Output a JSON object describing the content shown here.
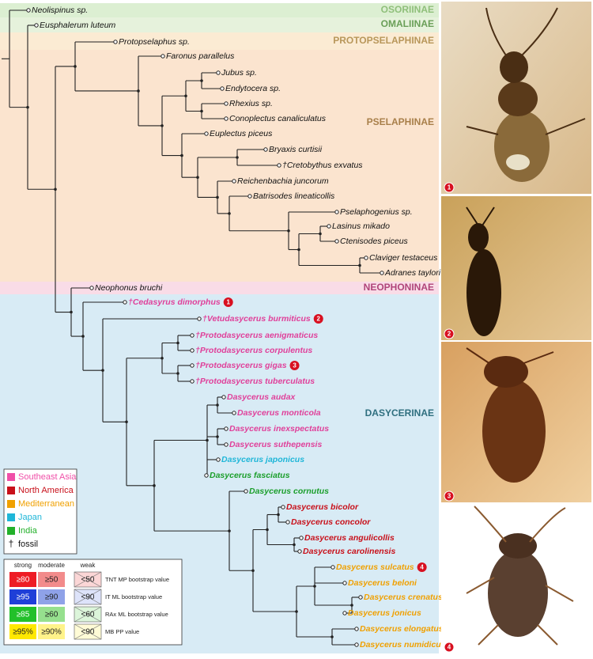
{
  "subfamilies": [
    {
      "name": "OSORIINAE",
      "color": "#8fbf7a"
    },
    {
      "name": "OMALIINAE",
      "color": "#6a9f58"
    },
    {
      "name": "PROTOPSELAPHINAE",
      "color": "#b8975a"
    },
    {
      "name": "PSELAPHINAE",
      "color": "#a87f4a"
    },
    {
      "name": "NEOPHONINAE",
      "color": "#b0457a"
    },
    {
      "name": "DASYCERINAE",
      "color": "#2f6f7f"
    }
  ],
  "taxa": [
    {
      "name": "Neolispinus sp.",
      "color": "#111111"
    },
    {
      "name": "Eusphalerum luteum",
      "color": "#111111"
    },
    {
      "name": "Protopselaphus sp.",
      "color": "#111111"
    },
    {
      "name": "Faronus parallelus",
      "color": "#111111"
    },
    {
      "name": "Jubus sp.",
      "color": "#111111"
    },
    {
      "name": "Endytocera sp.",
      "color": "#111111"
    },
    {
      "name": "Rhexius sp.",
      "color": "#111111"
    },
    {
      "name": "Conoplectus canaliculatus",
      "color": "#111111"
    },
    {
      "name": "Euplectus piceus",
      "color": "#111111"
    },
    {
      "name": "Bryaxis curtisii",
      "color": "#111111"
    },
    {
      "name": "†Cretobythus exvatus",
      "color": "#111111"
    },
    {
      "name": "Reichenbachia juncorum",
      "color": "#111111"
    },
    {
      "name": "Batrisodes lineaticollis",
      "color": "#111111"
    },
    {
      "name": "Pselaphogenius sp.",
      "color": "#111111"
    },
    {
      "name": "Lasinus mikado",
      "color": "#111111"
    },
    {
      "name": "Ctenisodes piceus",
      "color": "#111111"
    },
    {
      "name": "Claviger testaceus",
      "color": "#111111"
    },
    {
      "name": "Adranes taylori",
      "color": "#111111"
    },
    {
      "name": "Neophonus bruchi",
      "color": "#111111"
    },
    {
      "name": "†Cedasyrus dimorphus",
      "color": "#e0409a",
      "badge": "1"
    },
    {
      "name": "†Vetudasycerus burmiticus",
      "color": "#e0409a",
      "badge": "2"
    },
    {
      "name": "†Protodasycerus aenigmaticus",
      "color": "#e0409a"
    },
    {
      "name": "†Protodasycerus corpulentus",
      "color": "#e0409a"
    },
    {
      "name": "†Protodasycerus gigas",
      "color": "#e0409a",
      "badge": "3"
    },
    {
      "name": "†Protodasycerus tuberculatus",
      "color": "#e0409a"
    },
    {
      "name": "Dasycerus audax",
      "color": "#e0409a"
    },
    {
      "name": "Dasycerus monticola",
      "color": "#e0409a"
    },
    {
      "name": "Dasycerus inexspectatus",
      "color": "#e0409a"
    },
    {
      "name": "Dasycerus suthepensis",
      "color": "#e0409a"
    },
    {
      "name": "Dasycerus japonicus",
      "color": "#1fb6d8"
    },
    {
      "name": "Dasycerus fasciatus",
      "color": "#1a9e2a"
    },
    {
      "name": "Dasycerus cornutus",
      "color": "#1a9e2a"
    },
    {
      "name": "Dasycerus bicolor",
      "color": "#c8101a"
    },
    {
      "name": "Dasycerus concolor",
      "color": "#c8101a"
    },
    {
      "name": "Dasycerus angulicollis",
      "color": "#c8101a"
    },
    {
      "name": "Dasycerus carolinensis",
      "color": "#c8101a"
    },
    {
      "name": "Dasycerus sulcatus",
      "color": "#f0a000",
      "badge": "4"
    },
    {
      "name": "Dasycerus beloni",
      "color": "#f0a000"
    },
    {
      "name": "Dasycerus crenatus",
      "color": "#f0a000"
    },
    {
      "name": "Dasycerus jonicus",
      "color": "#f0a000"
    },
    {
      "name": "Dasycerus elongatus",
      "color": "#f0a000"
    },
    {
      "name": "Dasycerus numidicus",
      "color": "#f0a000"
    }
  ],
  "region_legend": [
    {
      "label": "Southeast Asia",
      "color": "#f04fa8"
    },
    {
      "label": "North America",
      "color": "#c8101a"
    },
    {
      "label": "Mediterranean",
      "color": "#f0a000"
    },
    {
      "label": "Japan",
      "color": "#1fb6d8"
    },
    {
      "label": "India",
      "color": "#22b02a"
    },
    {
      "label": "fossil",
      "symbol": "†"
    }
  ],
  "support_legend": {
    "headers": [
      "strong",
      "moderate",
      "weak"
    ],
    "rows": [
      {
        "strong": "≥80",
        "moderate": "≥50",
        "weak": "<50",
        "label": "TNT MP bootstrap value",
        "colors": [
          "#ee1c25",
          "#f28b8b",
          "#fbd6d6"
        ]
      },
      {
        "strong": "≥95",
        "moderate": "≥90",
        "weak": "<90",
        "label": "IT ML bootstrap value",
        "colors": [
          "#1f3fd8",
          "#8fa2e8",
          "#dde3fa"
        ]
      },
      {
        "strong": "≥85",
        "moderate": "≥60",
        "weak": "<60",
        "label": "RAx ML bootstrap value",
        "colors": [
          "#22c02a",
          "#96e08e",
          "#dcf5da"
        ]
      },
      {
        "strong": "≥95%",
        "moderate": "≥90%",
        "weak": "<90",
        "label": "MB PP value",
        "colors": [
          "#ffe800",
          "#fff38a",
          "#fffbd6"
        ]
      }
    ]
  },
  "photos": [
    {
      "label": "1"
    },
    {
      "label": "2"
    },
    {
      "label": "3"
    },
    {
      "label": "4"
    }
  ]
}
